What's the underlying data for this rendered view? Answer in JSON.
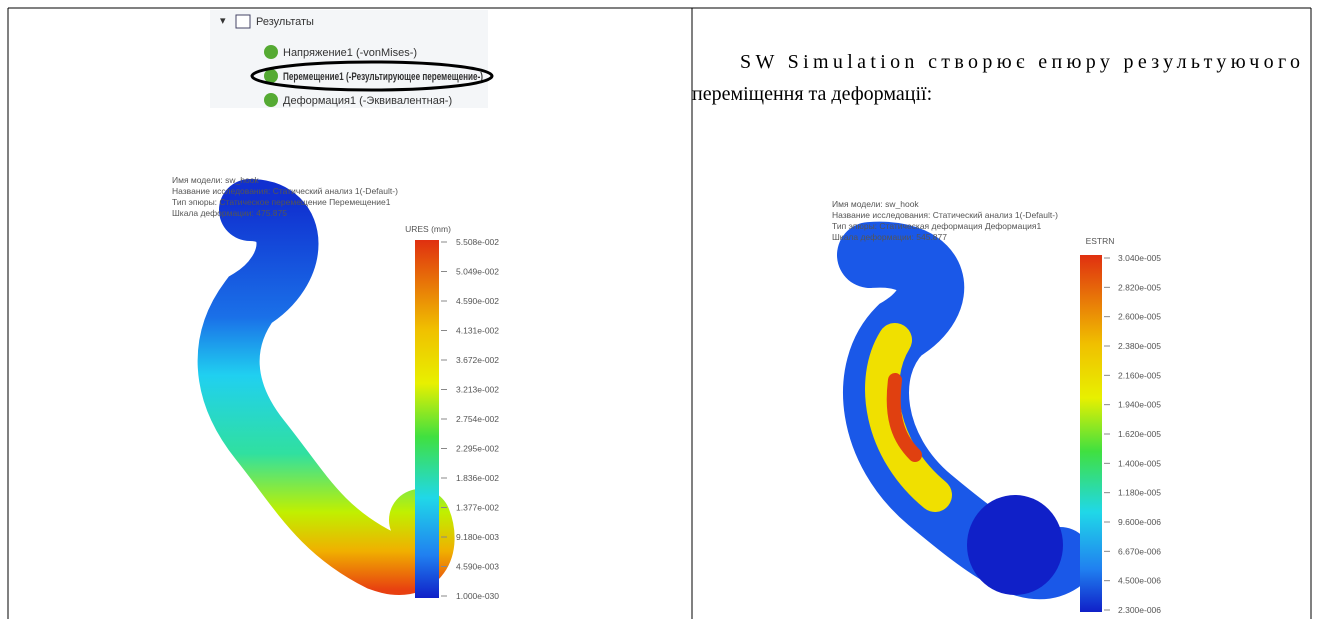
{
  "left": {
    "tree": {
      "root": "Результаты",
      "items": [
        "Напряжение1 (-vonMises-)",
        "Перемещение1 (-Результирующее перемещение-)",
        "Деформация1 (-Эквивалентная-)"
      ]
    },
    "plot": {
      "header": [
        "Имя модели: sw_hook",
        "Название исследования: Статический анализ 1(-Default-)",
        "Тип эпюры: Статическое перемещение Перемещение1",
        "Шкала деформации: 475.875"
      ],
      "legend_title": "URES (mm)",
      "legend_labels": [
        "5.508e-002",
        "5.049e-002",
        "4.590e-002",
        "4.131e-002",
        "3.672e-002",
        "3.213e-002",
        "2.754e-002",
        "2.295e-002",
        "1.836e-002",
        "1.377e-002",
        "9.180e-003",
        "4.590e-003",
        "1.000e-030"
      ]
    }
  },
  "right": {
    "text": "SW Simulation створює епюру результуючого переміщення та деформації:",
    "plot": {
      "header": [
        "Имя модели: sw_hook",
        "Название исследования: Статический анализ 1(-Default-)",
        "Тип эпюры: Статическая деформация Деформация1",
        "Шкала деформации: 545.877"
      ],
      "legend_title": "ESTRN",
      "legend_labels": [
        "3.040e-005",
        "2.820e-005",
        "2.600e-005",
        "2.380e-005",
        "2.160e-005",
        "1.940e-005",
        "1.620e-005",
        "1.400e-005",
        "1.180e-005",
        "9.600e-006",
        "6.670e-006",
        "4.500e-006",
        "2.300e-006"
      ]
    }
  }
}
